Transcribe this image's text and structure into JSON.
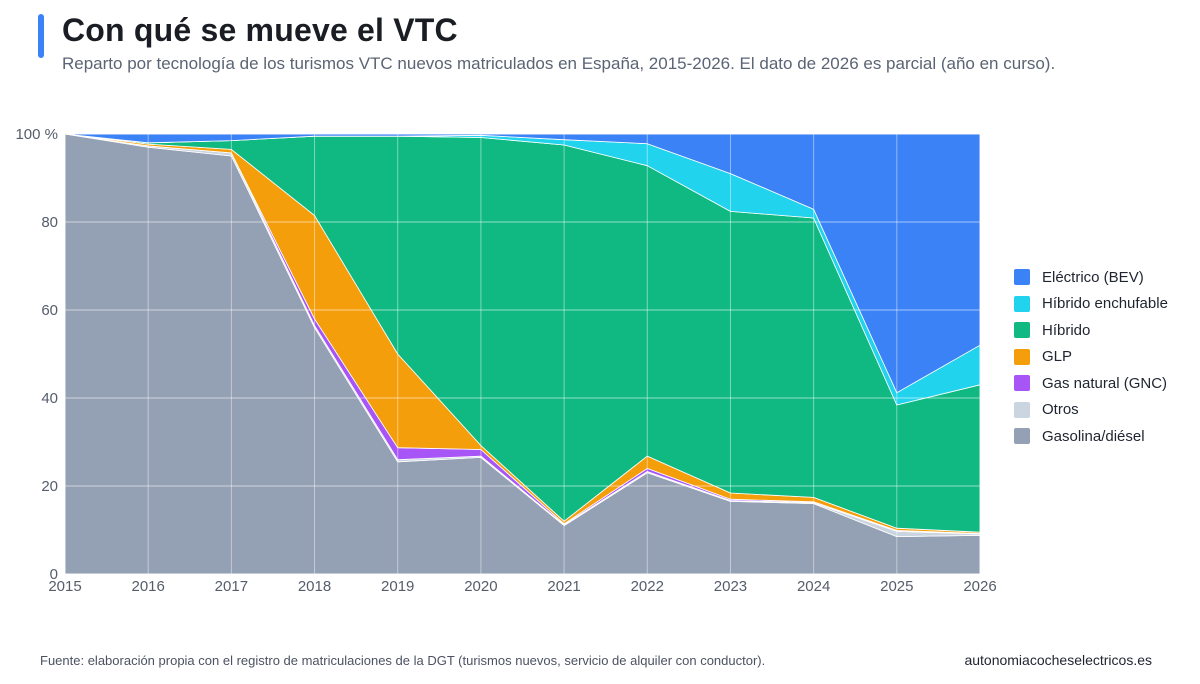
{
  "header": {
    "title": "Con qué se mueve el VTC",
    "subtitle": "Reparto por tecnología de los turismos VTC nuevos matriculados en España, 2015-2026. El dato de 2026 es parcial (año en curso)."
  },
  "footer": {
    "source": "Fuente: elaboración propia con el registro de matriculaciones de la DGT (turismos nuevos, servicio de alquiler con conductor).",
    "site": "autonomiacocheselectricos.es"
  },
  "colors": {
    "accent": "#3b82f6",
    "plot_background": "#f0f1f4",
    "gridline": "#ffffff"
  },
  "chart_data": {
    "type": "area",
    "stacked": true,
    "normalized": true,
    "x": [
      "2015",
      "2016",
      "2017",
      "2018",
      "2019",
      "2020",
      "2021",
      "2022",
      "2023",
      "2024",
      "2025",
      "2026"
    ],
    "y_ticks": [
      "0",
      "20",
      "40",
      "60",
      "80",
      "100 %"
    ],
    "ylim": [
      0,
      100
    ],
    "grid": true,
    "legend_position": "right",
    "series": [
      {
        "name": "Gasolina/diésel",
        "color": "#94a0b4",
        "values": [
          100,
          97,
          95,
          56,
          25.5,
          26.5,
          11,
          23,
          16.5,
          16,
          8.5,
          8.8
        ]
      },
      {
        "name": "Otros",
        "color": "#cbd5e1",
        "values": [
          0,
          0.3,
          0.7,
          0.5,
          0.5,
          0.3,
          0.2,
          0.3,
          0.2,
          0.2,
          1.2,
          0.3
        ]
      },
      {
        "name": "Gas natural (GNC)",
        "color": "#a855f7",
        "values": [
          0,
          0,
          0,
          1.5,
          2.7,
          1.5,
          0.2,
          0.7,
          0.3,
          0.2,
          0.2,
          0.1
        ]
      },
      {
        "name": "GLP",
        "color": "#f59e0b",
        "values": [
          0,
          0.4,
          0.8,
          23.5,
          21.3,
          0.9,
          0.6,
          2.8,
          1.4,
          1,
          0.5,
          0.3
        ]
      },
      {
        "name": "Híbrido",
        "color": "#10b981",
        "values": [
          0,
          0.3,
          2,
          18,
          49.5,
          70,
          85.5,
          66,
          64,
          63.5,
          28,
          33.5
        ]
      },
      {
        "name": "Híbrido enchufable",
        "color": "#22d3ee",
        "values": [
          0,
          0,
          0,
          0,
          0,
          0.5,
          1.2,
          5,
          8.6,
          2,
          2.8,
          9
        ]
      },
      {
        "name": "Eléctrico (BEV)",
        "color": "#3b82f6",
        "values": [
          0,
          2,
          1.5,
          0.5,
          0.5,
          0.3,
          1.3,
          2.2,
          9,
          17.1,
          58.8,
          48
        ]
      }
    ]
  }
}
